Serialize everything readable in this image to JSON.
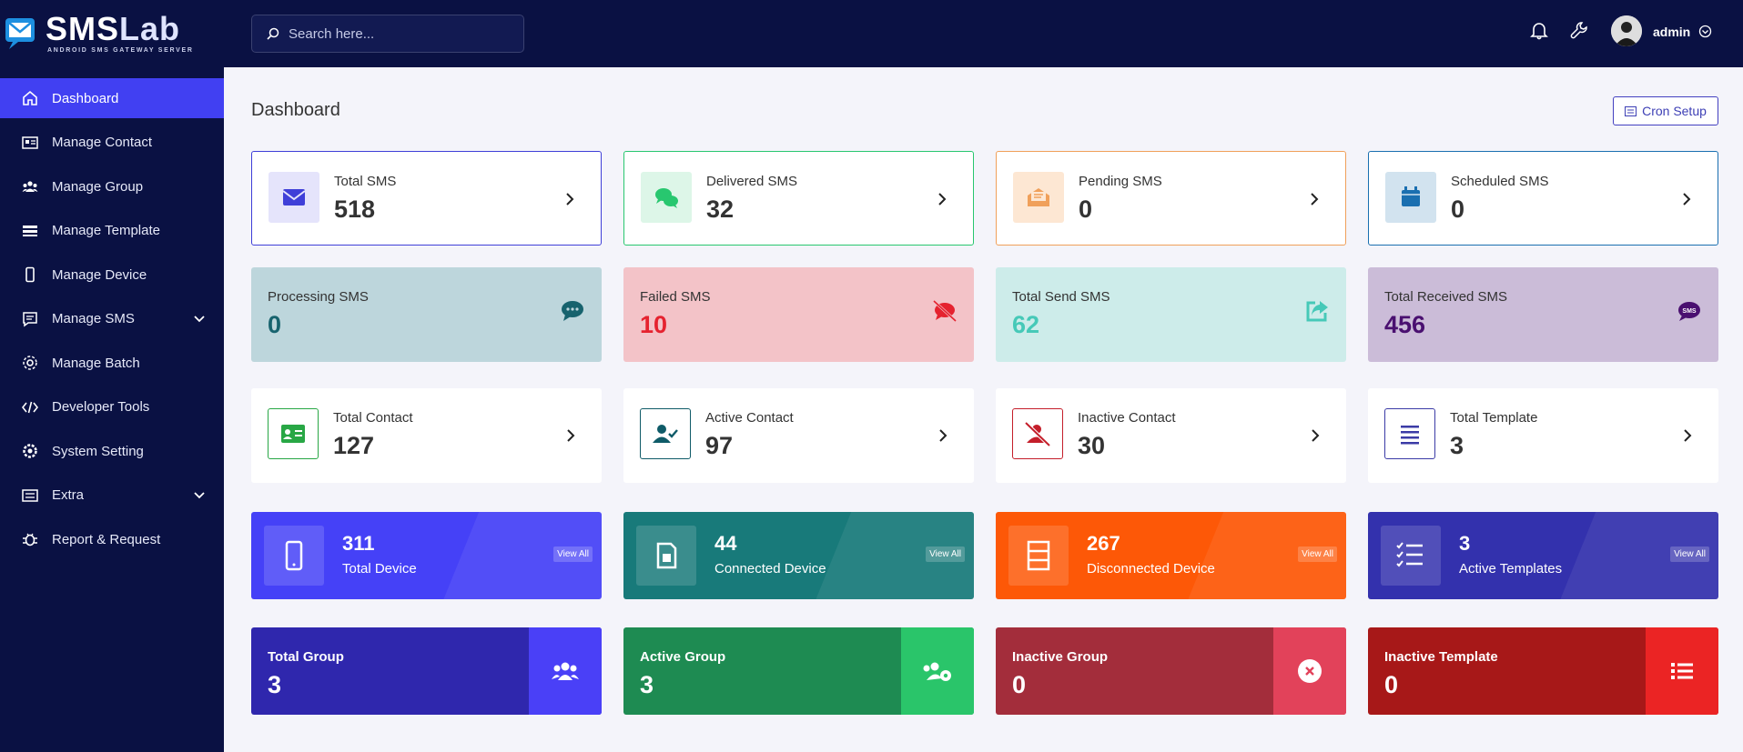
{
  "brand": {
    "name_part1": "SMS",
    "name_part2": "Lab",
    "tagline": "ANDROID SMS GATEWAY SERVER"
  },
  "search": {
    "placeholder": "Search here..."
  },
  "user": {
    "name": "admin"
  },
  "sidebar": {
    "items": [
      {
        "label": "Dashboard",
        "icon": "home-icon",
        "active": true
      },
      {
        "label": "Manage Contact",
        "icon": "contact-card-icon"
      },
      {
        "label": "Manage Group",
        "icon": "users-icon"
      },
      {
        "label": "Manage Template",
        "icon": "template-icon"
      },
      {
        "label": "Manage Device",
        "icon": "mobile-icon"
      },
      {
        "label": "Manage SMS",
        "icon": "message-icon",
        "expandable": true
      },
      {
        "label": "Manage Batch",
        "icon": "batch-icon"
      },
      {
        "label": "Developer Tools",
        "icon": "code-icon"
      },
      {
        "label": "System Setting",
        "icon": "settings-icon"
      },
      {
        "label": "Extra",
        "icon": "list-icon",
        "expandable": true
      },
      {
        "label": "Report & Request",
        "icon": "bug-icon"
      }
    ]
  },
  "page": {
    "title": "Dashboard",
    "cron_label": "Cron Setup"
  },
  "row1": [
    {
      "label": "Total SMS",
      "value": "518",
      "color": "#3f3fd8",
      "bg": "#e5e4fb"
    },
    {
      "label": "Delivered SMS",
      "value": "32",
      "color": "#28c76f",
      "bg": "#ddf6e8"
    },
    {
      "label": "Pending SMS",
      "value": "0",
      "color": "#f0a05a",
      "bg": "#fde7d3"
    },
    {
      "label": "Scheduled SMS",
      "value": "0",
      "color": "#1a6fb0",
      "bg": "#d2e3ef"
    }
  ],
  "row2": [
    {
      "label": "Processing SMS",
      "value": "0",
      "bg": "#bdd6dc",
      "color": "#17636e"
    },
    {
      "label": "Failed SMS",
      "value": "10",
      "bg": "#f3c3c8",
      "color": "#e5222f"
    },
    {
      "label": "Total Send SMS",
      "value": "62",
      "bg": "#cdecea",
      "color": "#46c9b8"
    },
    {
      "label": "Total Received SMS",
      "value": "456",
      "bg": "#cbbcd8",
      "color": "#4a1070"
    }
  ],
  "row3": [
    {
      "label": "Total Contact",
      "value": "127",
      "color": "#28a745"
    },
    {
      "label": "Active Contact",
      "value": "97",
      "color": "#0f5b68"
    },
    {
      "label": "Inactive Contact",
      "value": "30",
      "color": "#c41e2a"
    },
    {
      "label": "Total Template",
      "value": "3",
      "color": "#3b3ba6"
    }
  ],
  "row4": [
    {
      "label": "Total Device",
      "value": "311",
      "view": "View All",
      "bg": "#4541f7"
    },
    {
      "label": "Connected Device",
      "value": "44",
      "view": "View All",
      "bg": "#187a7a"
    },
    {
      "label": "Disconnected Device",
      "value": "267",
      "view": "View All",
      "bg": "#fd5807"
    },
    {
      "label": "Active Templates",
      "value": "3",
      "view": "View All",
      "bg": "#3331ad"
    }
  ],
  "row5": [
    {
      "label": "Total Group",
      "value": "3",
      "bg": "#2f27ad",
      "side": "#4a40f7"
    },
    {
      "label": "Active Group",
      "value": "3",
      "bg": "#1e8b52",
      "side": "#2ac56a"
    },
    {
      "label": "Inactive Group",
      "value": "0",
      "bg": "#a32d3b",
      "side": "#e2425a"
    },
    {
      "label": "Inactive Template",
      "value": "0",
      "bg": "#a71818",
      "side": "#eb2424"
    }
  ]
}
